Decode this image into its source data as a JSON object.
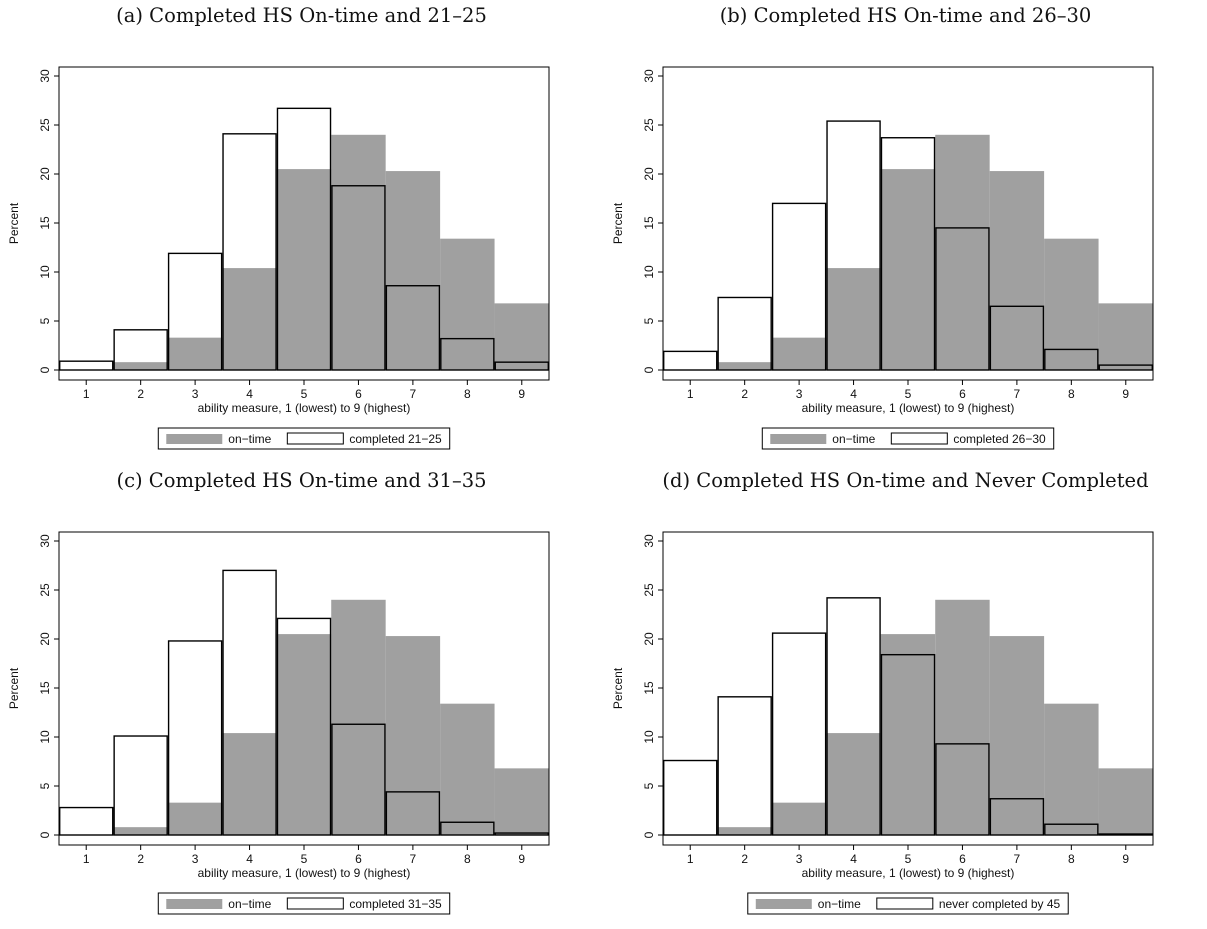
{
  "colors": {
    "on_time": "#a0a0a0",
    "comparison_fill": "#ffffff",
    "comparison_edge": "#000000"
  },
  "chart_data": [
    {
      "type": "bar",
      "title": "(a) Completed HS On-time and 21–25",
      "xlabel": "ability measure, 1 (lowest) to 9 (highest)",
      "ylabel": "Percent",
      "categories": [
        "1",
        "2",
        "3",
        "4",
        "5",
        "6",
        "7",
        "8",
        "9"
      ],
      "yticks": [
        "0",
        "5",
        "10",
        "15",
        "20",
        "25",
        "30"
      ],
      "ylim": [
        0,
        30
      ],
      "grid": false,
      "legend_position": "bottom",
      "series": [
        {
          "name": "on−time",
          "values": [
            0,
            0.8,
            3.3,
            10.4,
            20.5,
            24.0,
            20.3,
            13.4,
            6.8
          ]
        },
        {
          "name": "completed 21−25",
          "values": [
            0.9,
            4.1,
            11.9,
            24.1,
            26.7,
            18.8,
            8.6,
            3.2,
            0.8
          ]
        }
      ]
    },
    {
      "type": "bar",
      "title": "(b) Completed HS On-time and 26–30",
      "xlabel": "ability measure, 1 (lowest) to 9 (highest)",
      "ylabel": "Percent",
      "categories": [
        "1",
        "2",
        "3",
        "4",
        "5",
        "6",
        "7",
        "8",
        "9"
      ],
      "yticks": [
        "0",
        "5",
        "10",
        "15",
        "20",
        "25",
        "30"
      ],
      "ylim": [
        0,
        30
      ],
      "grid": false,
      "legend_position": "bottom",
      "series": [
        {
          "name": "on−time",
          "values": [
            0,
            0.8,
            3.3,
            10.4,
            20.5,
            24.0,
            20.3,
            13.4,
            6.8
          ]
        },
        {
          "name": "completed 26−30",
          "values": [
            1.9,
            7.4,
            17.0,
            25.4,
            23.7,
            14.5,
            6.5,
            2.1,
            0.5
          ]
        }
      ]
    },
    {
      "type": "bar",
      "title": "(c) Completed HS On-time and 31–35",
      "xlabel": "ability measure, 1 (lowest) to 9 (highest)",
      "ylabel": "Percent",
      "categories": [
        "1",
        "2",
        "3",
        "4",
        "5",
        "6",
        "7",
        "8",
        "9"
      ],
      "yticks": [
        "0",
        "5",
        "10",
        "15",
        "20",
        "25",
        "30"
      ],
      "ylim": [
        0,
        30
      ],
      "grid": false,
      "legend_position": "bottom",
      "series": [
        {
          "name": "on−time",
          "values": [
            0,
            0.8,
            3.3,
            10.4,
            20.5,
            24.0,
            20.3,
            13.4,
            6.8
          ]
        },
        {
          "name": "completed 31−35",
          "values": [
            2.8,
            10.1,
            19.8,
            27.0,
            22.1,
            11.3,
            4.4,
            1.3,
            0.2
          ]
        }
      ]
    },
    {
      "type": "bar",
      "title": "(d) Completed HS On-time and Never Completed",
      "xlabel": "ability measure, 1 (lowest) to 9 (highest)",
      "ylabel": "Percent",
      "categories": [
        "1",
        "2",
        "3",
        "4",
        "5",
        "6",
        "7",
        "8",
        "9"
      ],
      "yticks": [
        "0",
        "5",
        "10",
        "15",
        "20",
        "25",
        "30"
      ],
      "ylim": [
        0,
        30
      ],
      "grid": false,
      "legend_position": "bottom",
      "series": [
        {
          "name": "on−time",
          "values": [
            0,
            0.8,
            3.3,
            10.4,
            20.5,
            24.0,
            20.3,
            13.4,
            6.8
          ]
        },
        {
          "name": "never completed by 45",
          "values": [
            7.6,
            14.1,
            20.6,
            24.2,
            18.4,
            9.3,
            3.7,
            1.1,
            0.1
          ]
        }
      ]
    }
  ]
}
